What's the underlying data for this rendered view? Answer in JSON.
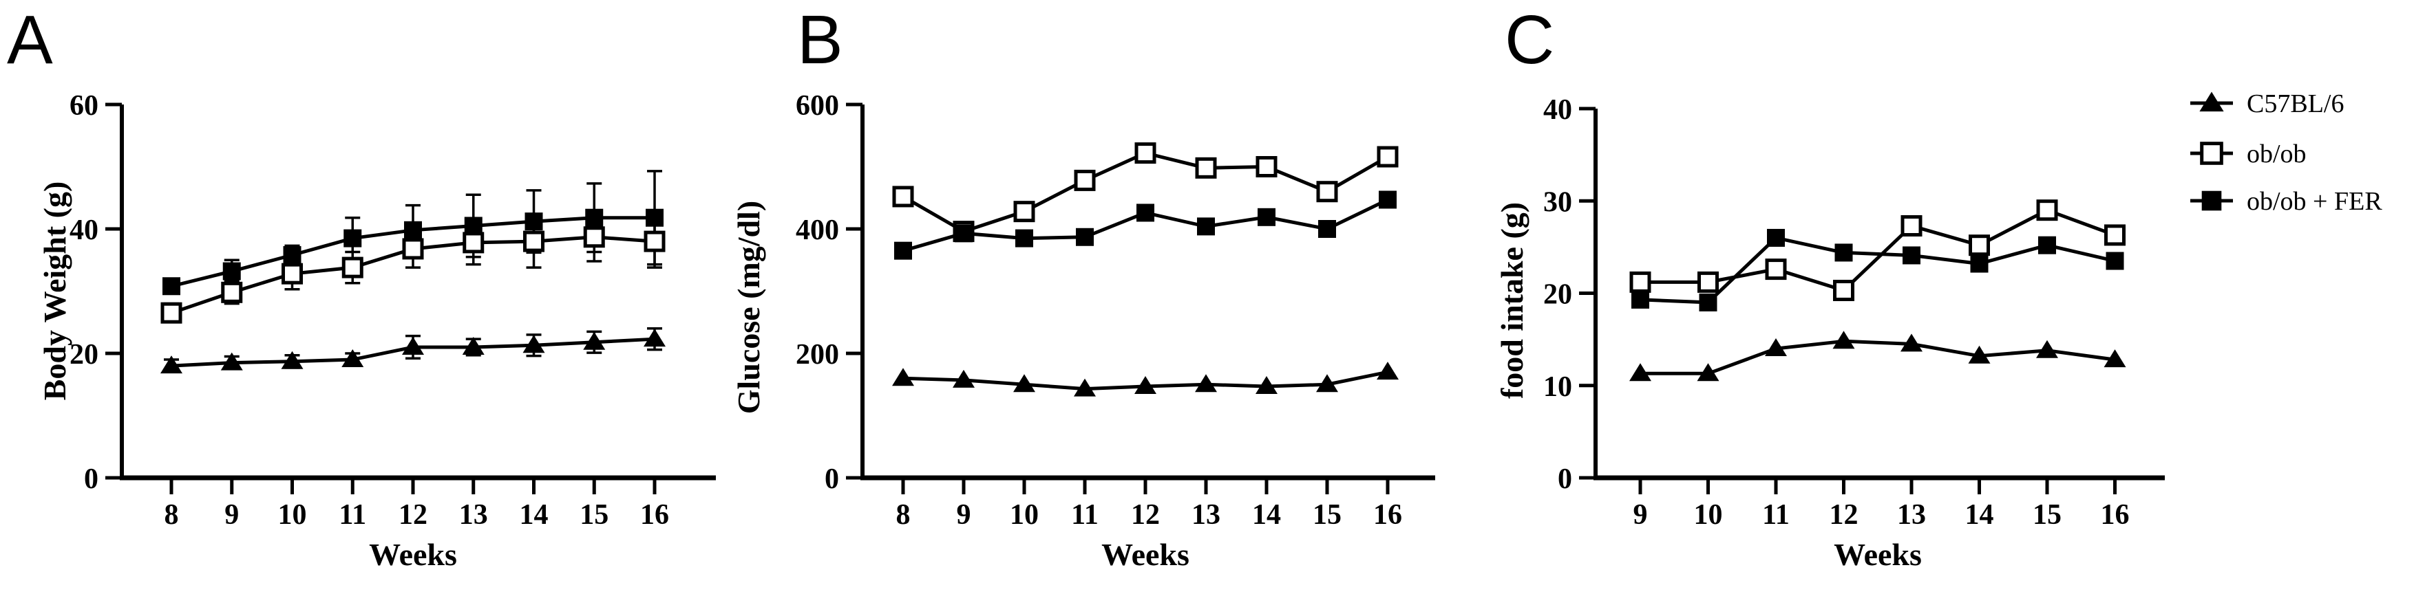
{
  "figure": {
    "background": "#ffffff",
    "ink": "#000000"
  },
  "legend": {
    "position": "outside-right",
    "items": [
      {
        "label": "C57BL/6",
        "marker": "filled-triangle"
      },
      {
        "label": "ob/ob",
        "marker": "open-square"
      },
      {
        "label": "ob/ob + FER",
        "marker": "filled-square"
      }
    ]
  },
  "chart_data": [
    {
      "panel": "A",
      "type": "line",
      "xlabel": "Weeks",
      "ylabel": "Body Weight (g)",
      "x": [
        8,
        9,
        10,
        11,
        12,
        13,
        14,
        15,
        16
      ],
      "ylim": [
        0,
        60
      ],
      "yticks": [
        0,
        20,
        40,
        60
      ],
      "grid": false,
      "error_bars": true,
      "series": [
        {
          "name": "C57BL/6",
          "marker": "filled-triangle",
          "values": [
            18.0,
            18.5,
            18.7,
            19.0,
            21.0,
            21.0,
            21.3,
            21.8,
            22.3
          ],
          "errors": [
            1.0,
            1.0,
            1.0,
            1.0,
            1.8,
            1.3,
            1.7,
            1.7,
            1.7
          ]
        },
        {
          "name": "ob/ob",
          "marker": "open-square",
          "values": [
            26.5,
            29.8,
            32.8,
            33.8,
            36.8,
            37.8,
            38.0,
            38.7,
            38.0
          ],
          "errors": [
            1.5,
            1.8,
            2.5,
            2.5,
            3.0,
            3.5,
            4.2,
            3.9,
            4.2
          ]
        },
        {
          "name": "ob/ob + FER",
          "marker": "filled-square",
          "values": [
            30.8,
            33.2,
            35.8,
            38.5,
            39.8,
            40.5,
            41.2,
            41.8,
            41.8
          ],
          "errors": [
            1.0,
            1.8,
            1.5,
            3.3,
            4.0,
            5.0,
            5.0,
            5.5,
            7.5
          ]
        }
      ]
    },
    {
      "panel": "B",
      "type": "line",
      "xlabel": "Weeks",
      "ylabel": "Glucose (mg/dl)",
      "x": [
        8,
        9,
        10,
        11,
        12,
        13,
        14,
        15,
        16
      ],
      "ylim": [
        0,
        600
      ],
      "yticks": [
        0,
        200,
        400,
        600
      ],
      "grid": false,
      "error_bars": false,
      "series": [
        {
          "name": "C57BL/6",
          "marker": "filled-triangle",
          "values": [
            160,
            157,
            150,
            143,
            147,
            150,
            147,
            150,
            170
          ]
        },
        {
          "name": "ob/ob",
          "marker": "open-square",
          "values": [
            452,
            396,
            428,
            478,
            522,
            498,
            500,
            460,
            516
          ]
        },
        {
          "name": "ob/ob + FER",
          "marker": "filled-square",
          "values": [
            365,
            393,
            385,
            387,
            426,
            404,
            419,
            400,
            447
          ]
        }
      ]
    },
    {
      "panel": "C",
      "type": "line",
      "xlabel": "Weeks",
      "ylabel": "food intake (g)",
      "x": [
        9,
        10,
        11,
        12,
        13,
        14,
        15,
        16
      ],
      "ylim": [
        0,
        40
      ],
      "yticks": [
        0,
        10,
        20,
        30,
        40
      ],
      "grid": false,
      "error_bars": false,
      "series": [
        {
          "name": "C57BL/6",
          "marker": "filled-triangle",
          "values": [
            11.3,
            11.3,
            14.0,
            14.8,
            14.5,
            13.2,
            13.8,
            12.8
          ]
        },
        {
          "name": "ob/ob",
          "marker": "open-square",
          "values": [
            21.2,
            21.2,
            22.6,
            20.3,
            27.3,
            25.2,
            29.0,
            26.3
          ]
        },
        {
          "name": "ob/ob + FER",
          "marker": "filled-square",
          "values": [
            19.3,
            19.0,
            26.0,
            24.4,
            24.1,
            23.2,
            25.2,
            23.5
          ]
        }
      ]
    }
  ]
}
